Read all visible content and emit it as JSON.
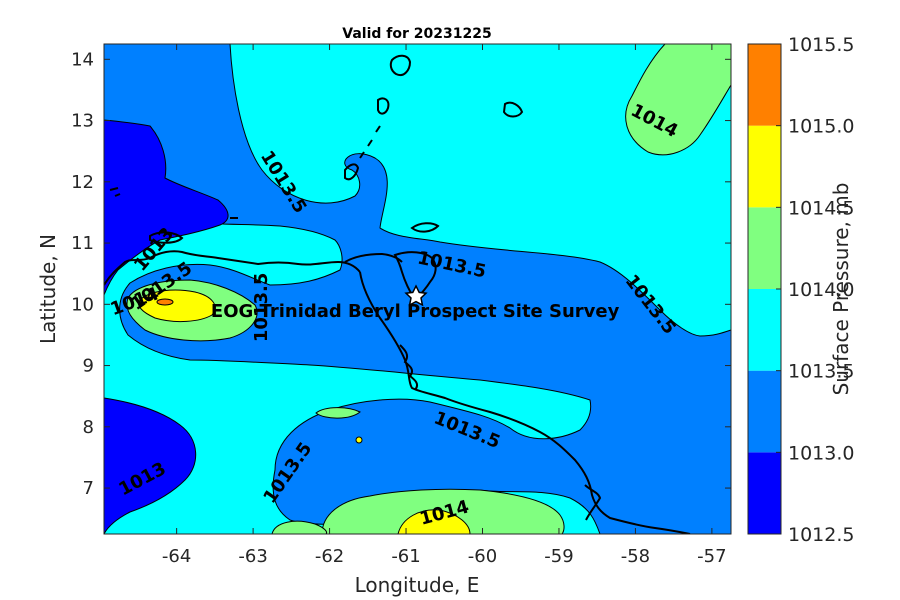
{
  "chart_data": {
    "type": "contour-map",
    "title": "Valid for 20231225",
    "xlabel": "Longitude, E",
    "ylabel": "Latitude, N",
    "xlim": [
      -64.95,
      -56.75
    ],
    "ylim": [
      6.25,
      14.25
    ],
    "xticks": [
      "-64",
      "-63",
      "-62",
      "-61",
      "-60",
      "-59",
      "-58",
      "-57"
    ],
    "yticks": [
      "7",
      "8",
      "9",
      "10",
      "11",
      "12",
      "13",
      "14"
    ],
    "colorbar": {
      "label": "Surface Pressure, mb",
      "levels": [
        "1012.5",
        "1013.0",
        "1013.5",
        "1014.0",
        "1014.5",
        "1015.0",
        "1015.5"
      ],
      "colors": [
        "#0000ff",
        "#0080ff",
        "#00ffff",
        "#80ff80",
        "#ffff00",
        "#ff8000"
      ]
    },
    "contour_labels": [
      {
        "text": "1013.5",
        "lon": -62.6,
        "lat": 12.0,
        "angle": 58
      },
      {
        "text": "1013.5",
        "lon": -60.4,
        "lat": 10.65,
        "angle": 12
      },
      {
        "text": "1013.5",
        "lon": -57.8,
        "lat": 10.0,
        "angle": 52
      },
      {
        "text": "1014",
        "lon": -57.75,
        "lat": 13.0,
        "angle": 28
      },
      {
        "text": "1013",
        "lon": -64.3,
        "lat": 10.9,
        "angle": -50
      },
      {
        "text": "1013.5",
        "lon": -64.2,
        "lat": 10.3,
        "angle": -35
      },
      {
        "text": "1014",
        "lon": -64.55,
        "lat": 10.05,
        "angle": -20
      },
      {
        "text": "1013.5",
        "lon": -62.9,
        "lat": 9.95,
        "angle": -90
      },
      {
        "text": "1013.5",
        "lon": -60.2,
        "lat": 7.95,
        "angle": 22
      },
      {
        "text": "1013.5",
        "lon": -62.55,
        "lat": 7.25,
        "angle": -55
      },
      {
        "text": "1013",
        "lon": -64.45,
        "lat": 7.15,
        "angle": -28
      },
      {
        "text": "1014",
        "lon": -60.5,
        "lat": 6.6,
        "angle": -15
      }
    ],
    "annotation": {
      "text": "EOG Trinidad Beryl Prospect Site Survey",
      "lon": -60.75,
      "lat": 10.15,
      "marker": "star"
    }
  }
}
